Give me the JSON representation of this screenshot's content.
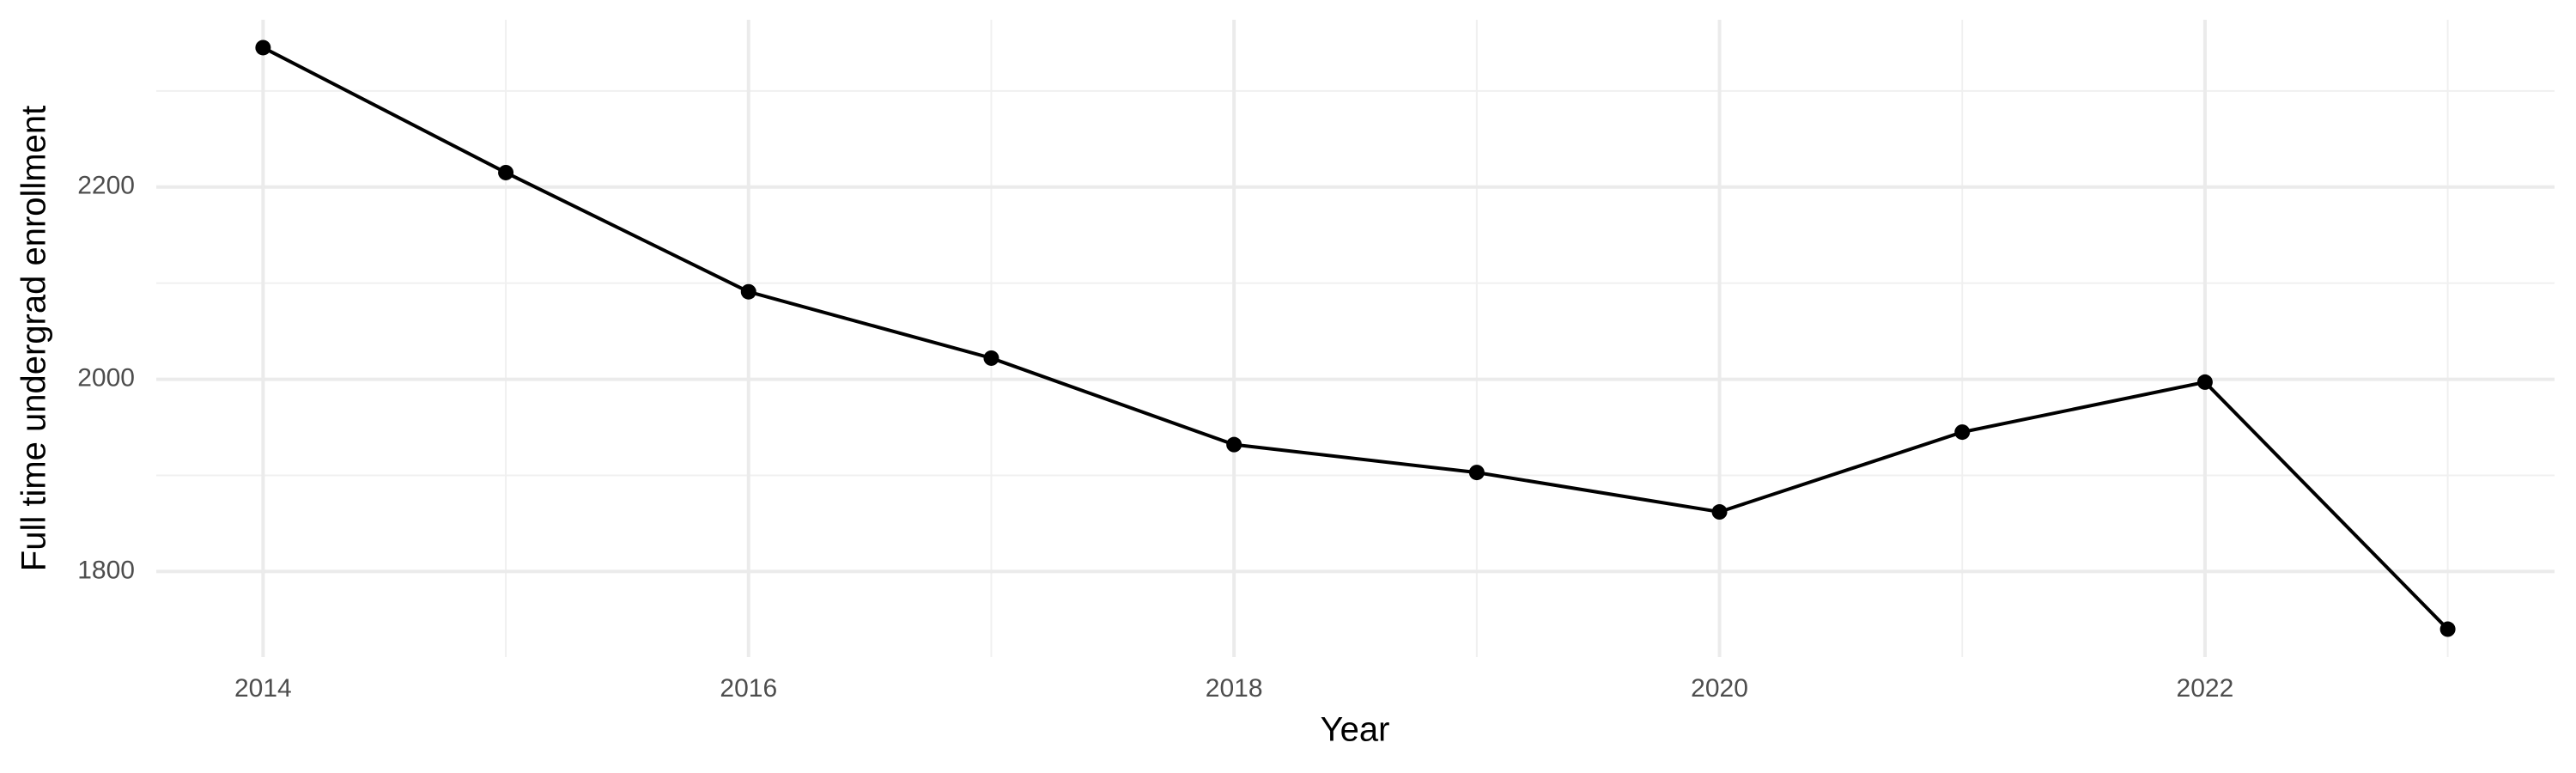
{
  "chart_data": {
    "type": "line",
    "x_label": "Year",
    "y_label": "Full time undergrad enrollment",
    "x": [
      2014,
      2015,
      2016,
      2017,
      2018,
      2019,
      2020,
      2021,
      2022,
      2023
    ],
    "values": [
      2345,
      2215,
      2091,
      2022,
      1932,
      1903,
      1862,
      1945,
      1997,
      1740
    ],
    "color": "#000000",
    "xlim": [
      2013.56,
      2023.44
    ],
    "ylim": [
      1711,
      2374
    ],
    "xticks": [
      2014,
      2016,
      2018,
      2020,
      2022
    ],
    "yticks": [
      1800,
      2000,
      2200
    ],
    "grid": true
  }
}
